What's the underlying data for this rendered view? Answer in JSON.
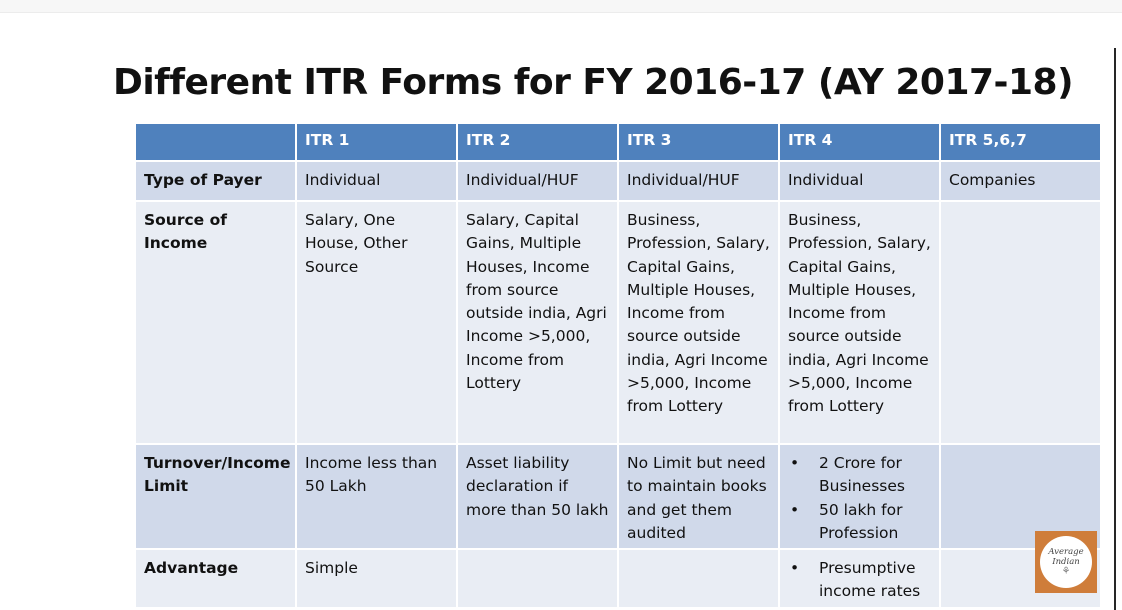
{
  "slide": {
    "title": "Different ITR Forms for FY 2016-17 (AY 2017-18)"
  },
  "table": {
    "corner": "",
    "columns": [
      "ITR 1",
      "ITR 2",
      "ITR 3",
      "ITR 4",
      "ITR 5,6,7"
    ],
    "rows": [
      {
        "label": "Type of Payer",
        "cells": [
          "Individual",
          "Individual/HUF",
          "Individual/HUF",
          "Individual",
          "Companies"
        ]
      },
      {
        "label": "Source of Income",
        "cells": [
          "Salary, One House, Other Source",
          "Salary, Capital Gains, Multiple Houses, Income from source outside india, Agri Income >5,000, Income from Lottery",
          "Business, Profession, Salary, Capital Gains, Multiple Houses, Income from source outside india, Agri Income >5,000, Income from Lottery",
          "Business, Profession, Salary, Capital Gains, Multiple Houses, Income from source outside india, Agri Income >5,000, Income from Lottery",
          ""
        ]
      },
      {
        "label": "Turnover/Income Limit",
        "cells": [
          "Income less than 50 Lakh",
          "Asset liability declaration if more than 50 lakh",
          "No Limit but need to maintain books and get them audited",
          "",
          ""
        ],
        "itr4_bullets": [
          "2 Crore for Businesses",
          "50 lakh for Profession"
        ]
      },
      {
        "label": "Advantage",
        "cells": [
          "Simple",
          "",
          "",
          "",
          ""
        ],
        "itr4_bullets": [
          "Presumptive income rates"
        ]
      }
    ]
  },
  "logo": {
    "line1": "Average",
    "line2": "Indian",
    "icon": "tree-icon"
  }
}
